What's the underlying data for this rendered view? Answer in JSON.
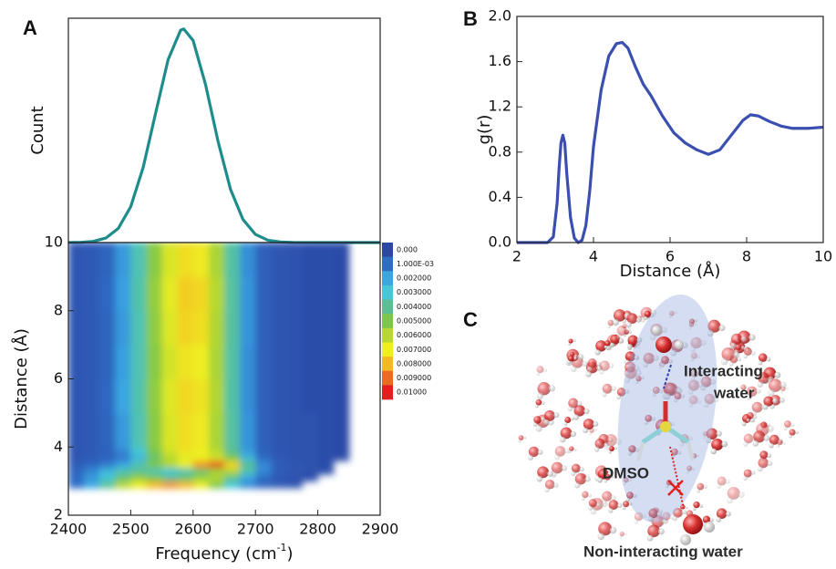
{
  "panel_labels": [
    "A",
    "B",
    "C"
  ],
  "chart_data": [
    {
      "type": "line",
      "y_label": "Count",
      "color": "#1f8c8c",
      "x": [
        2400,
        2420,
        2440,
        2460,
        2480,
        2500,
        2520,
        2540,
        2560,
        2580,
        2585,
        2600,
        2620,
        2640,
        2660,
        2680,
        2700,
        2720,
        2740,
        2760,
        2780,
        2800,
        2850,
        2900
      ],
      "values": [
        0.0002,
        0.0012,
        0.0056,
        0.021,
        0.066,
        0.168,
        0.352,
        0.607,
        0.857,
        0.994,
        1.0,
        0.946,
        0.739,
        0.474,
        0.249,
        0.108,
        0.038,
        0.011,
        0.003,
        0.0005,
        0,
        0,
        0,
        0
      ],
      "xlim": [
        2400,
        2900
      ],
      "ylim": [
        0,
        1.05
      ]
    },
    {
      "type": "heatmap",
      "x_label": {
        "text": "Frequency (cm",
        "superscript": "-1",
        "suffix": ")"
      },
      "y_label": "Distance (Å)",
      "xlim": [
        2400,
        2900
      ],
      "xticks": [
        2400,
        2500,
        2600,
        2700,
        2800,
        2900
      ],
      "ylim": [
        2,
        10
      ],
      "yticks": [
        2,
        4,
        6,
        8,
        10
      ],
      "x_bins": [
        2400,
        2425,
        2450,
        2475,
        2500,
        2525,
        2550,
        2575,
        2600,
        2625,
        2650,
        2675,
        2700,
        2725,
        2750,
        2775,
        2800,
        2825,
        2850,
        2875,
        2900
      ],
      "y_bins": [
        2.8,
        3.0,
        3.2,
        3.4,
        3.6,
        3.8,
        4.0,
        5.0,
        6.0,
        7.0,
        8.0,
        9.0,
        10.0
      ],
      "z": [
        [
          0.001,
          0.002,
          0.004,
          0.006,
          0.007,
          0.008,
          0.0085,
          0.008,
          0.007,
          0.005,
          0.003,
          0.0015,
          0.0008,
          0.0005,
          0.0003,
          null,
          null,
          null,
          null,
          null
        ],
        [
          0.001,
          0.0018,
          0.003,
          0.0045,
          0.0055,
          0.005,
          0.004,
          0.0045,
          0.0055,
          0.006,
          0.004,
          0.002,
          0.001,
          0.0005,
          0.0003,
          0.0002,
          null,
          null,
          null,
          null
        ],
        [
          0.0008,
          0.0015,
          0.0025,
          0.0035,
          0.004,
          0.0035,
          0.003,
          0.0035,
          0.0045,
          0.0055,
          0.006,
          0.0035,
          0.0015,
          0.0006,
          0.0004,
          0.0003,
          0.0002,
          null,
          null,
          null
        ],
        [
          0.0006,
          0.0008,
          0.0012,
          0.002,
          0.0035,
          0.005,
          0.006,
          0.007,
          0.0085,
          0.0095,
          0.0075,
          0.004,
          0.0015,
          0.0006,
          0.0004,
          0.0003,
          0.0002,
          null,
          null,
          null
        ],
        [
          0.0004,
          0.0006,
          0.0008,
          0.0012,
          0.0025,
          0.0045,
          0.006,
          0.0068,
          0.007,
          0.0065,
          0.005,
          0.0025,
          0.001,
          0.0005,
          0.0003,
          0.0003,
          0.0002,
          0.0001,
          null,
          null
        ],
        [
          0.0004,
          0.0005,
          0.0007,
          0.0015,
          0.003,
          0.005,
          0.0065,
          0.0072,
          0.007,
          0.006,
          0.004,
          0.0018,
          0.0007,
          0.0004,
          0.0003,
          0.0003,
          0.0002,
          0.0001,
          null,
          null
        ],
        [
          0.0004,
          0.0005,
          0.0008,
          0.0018,
          0.0035,
          0.0052,
          0.0066,
          0.0073,
          0.0071,
          0.0058,
          0.0038,
          0.0017,
          0.0007,
          0.0004,
          0.0003,
          0.0003,
          0.0002,
          0.0001,
          null,
          null
        ],
        [
          0.0004,
          0.0005,
          0.0009,
          0.002,
          0.0036,
          0.0053,
          0.0067,
          0.0074,
          0.0072,
          0.0059,
          0.0037,
          0.0016,
          0.0007,
          0.0004,
          0.0003,
          0.0002,
          0.0002,
          0.0001,
          null,
          null
        ],
        [
          0.0004,
          0.0005,
          0.0008,
          0.0019,
          0.0035,
          0.0052,
          0.0065,
          0.0072,
          0.007,
          0.0058,
          0.0037,
          0.0016,
          0.0007,
          0.0004,
          0.0003,
          0.0002,
          0.0002,
          0.0001,
          null,
          null
        ],
        [
          0.0004,
          0.0005,
          0.0008,
          0.0018,
          0.0035,
          0.0053,
          0.0067,
          0.0075,
          0.0073,
          0.0059,
          0.0038,
          0.0017,
          0.0007,
          0.0004,
          0.0003,
          0.0002,
          0.0002,
          0.0001,
          null,
          null
        ],
        [
          0.0004,
          0.0005,
          0.0009,
          0.0019,
          0.0036,
          0.0054,
          0.0068,
          0.0076,
          0.0074,
          0.006,
          0.0038,
          0.0017,
          0.0007,
          0.0004,
          0.0003,
          0.0002,
          0.0002,
          0.0001,
          null,
          null
        ],
        [
          0.0004,
          0.0005,
          0.0008,
          0.0018,
          0.0035,
          0.0052,
          0.0066,
          0.0073,
          0.0071,
          0.0058,
          0.0037,
          0.0016,
          0.0007,
          0.0004,
          0.0003,
          0.0002,
          0.0002,
          0.0001,
          null,
          null
        ]
      ],
      "colorbar": {
        "levels": [
          {
            "value": 0,
            "label": "0.000"
          },
          {
            "value": 0.001,
            "label": "1.000E-03"
          },
          {
            "value": 0.002,
            "label": "0.002000"
          },
          {
            "value": 0.003,
            "label": "0.003000"
          },
          {
            "value": 0.004,
            "label": "0.004000"
          },
          {
            "value": 0.005,
            "label": "0.005000"
          },
          {
            "value": 0.006,
            "label": "0.006000"
          },
          {
            "value": 0.007,
            "label": "0.007000"
          },
          {
            "value": 0.008,
            "label": "0.008000"
          },
          {
            "value": 0.009,
            "label": "0.009000"
          },
          {
            "value": 0.01,
            "label": "0.01000"
          }
        ],
        "colors": [
          "#2c47a3",
          "#2e6cc6",
          "#3aa6e2",
          "#44c7d6",
          "#5abf92",
          "#7cc74a",
          "#b6d82f",
          "#eeee22",
          "#f6b81f",
          "#ef6a1f",
          "#e41e1e"
        ]
      }
    },
    {
      "type": "line",
      "x_label": "Distance (Å)",
      "y_label": "g(r)",
      "color": "#3a4fb0",
      "x": [
        2,
        2.8,
        2.95,
        3.05,
        3.1,
        3.15,
        3.2,
        3.25,
        3.3,
        3.4,
        3.5,
        3.6,
        3.7,
        3.8,
        3.9,
        4.0,
        4.2,
        4.4,
        4.6,
        4.75,
        4.9,
        5.1,
        5.3,
        5.5,
        5.8,
        6.1,
        6.4,
        6.7,
        7.0,
        7.3,
        7.6,
        7.9,
        8.1,
        8.3,
        8.6,
        8.9,
        9.2,
        9.6,
        10
      ],
      "values": [
        0,
        0,
        0.05,
        0.35,
        0.65,
        0.88,
        0.95,
        0.88,
        0.62,
        0.22,
        0.04,
        0.0,
        0.02,
        0.15,
        0.45,
        0.85,
        1.35,
        1.65,
        1.76,
        1.77,
        1.72,
        1.55,
        1.4,
        1.3,
        1.12,
        0.97,
        0.88,
        0.82,
        0.78,
        0.82,
        0.95,
        1.08,
        1.13,
        1.12,
        1.07,
        1.03,
        1.01,
        1.01,
        1.02
      ],
      "xlim": [
        2,
        10
      ],
      "xticks": [
        2,
        4,
        6,
        8,
        10
      ],
      "ylim": [
        0,
        2
      ],
      "yticks": [
        {
          "value": 0,
          "label": "0.0"
        },
        0.4,
        0.8,
        1.2,
        1.6,
        {
          "value": 2,
          "label": "2.0"
        }
      ]
    }
  ],
  "scene": {
    "interacting_label": [
      "Interacting",
      "water"
    ],
    "dmso_label": "DMSO",
    "non_interacting_label": "Non-interacting water"
  }
}
